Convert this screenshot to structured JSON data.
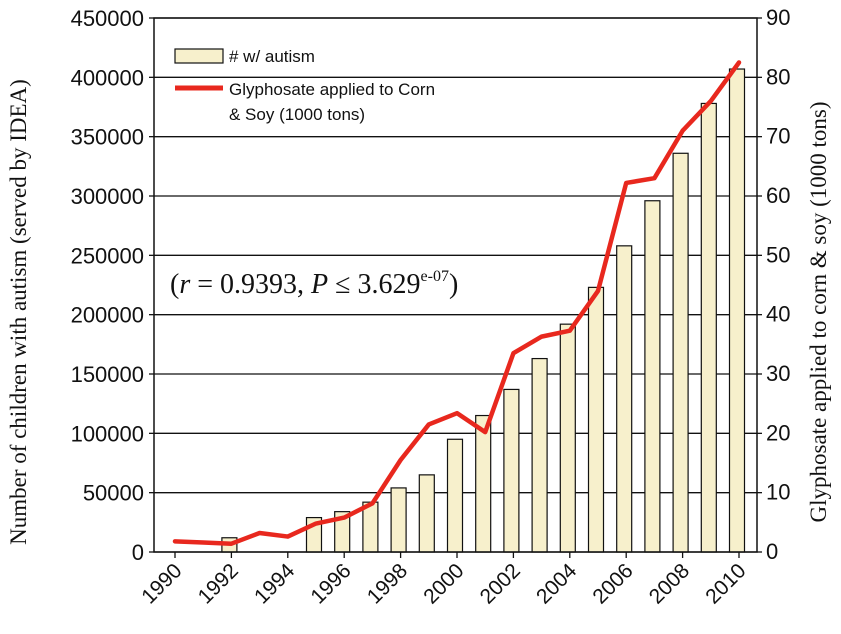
{
  "chart_data": {
    "type": "bar",
    "x": [
      1990,
      1991,
      1992,
      1993,
      1994,
      1995,
      1996,
      1997,
      1998,
      1999,
      2000,
      2001,
      2002,
      2003,
      2004,
      2005,
      2006,
      2007,
      2008,
      2009,
      2010
    ],
    "x_tick_labels": [
      "1990",
      "1992",
      "1994",
      "1996",
      "1998",
      "2000",
      "2002",
      "2004",
      "2006",
      "2008",
      "2010"
    ],
    "series": [
      {
        "name": "# w/ autism",
        "type": "bar",
        "axis": "left",
        "color": "#f7f0cc",
        "values": [
          null,
          null,
          12000,
          null,
          null,
          29000,
          34000,
          42000,
          54000,
          65000,
          95000,
          115000,
          137000,
          163000,
          192000,
          223000,
          258000,
          296000,
          336000,
          378000,
          407000
        ]
      },
      {
        "name": "Glyphosate applied to Corn & Soy (1000 tons)",
        "legend_lines": [
          "Glyphosate applied to Corn",
          "& Soy (1000 tons)"
        ],
        "type": "line",
        "axis": "right",
        "color": "#e8281e",
        "values": [
          1.8,
          1.6,
          1.4,
          3.2,
          2.6,
          4.8,
          5.8,
          8.2,
          15.5,
          21.5,
          23.4,
          20.2,
          33.5,
          36.3,
          37.3,
          44.0,
          62.2,
          63.0,
          71.0,
          76.0,
          82.5
        ]
      }
    ],
    "ylabel": "Number of children with autism (served by IDEA)",
    "ylabel_right": "Glyphosate applied to corn & soy (1000 tons)",
    "ylim": [
      0,
      450000
    ],
    "ylim_right": [
      0,
      90
    ],
    "yticks": [
      "0",
      "50000",
      "100000",
      "150000",
      "200000",
      "250000",
      "300000",
      "350000",
      "400000",
      "450000"
    ],
    "yticks_right": [
      "0",
      "10",
      "20",
      "30",
      "40",
      "50",
      "60",
      "70",
      "80",
      "90"
    ],
    "grid": "horizontal",
    "legend_position": "top-left",
    "annotation": {
      "open": "(",
      "r_sym": "r",
      "r_text": " = 0.9393, ",
      "p_sym": "P",
      "p_text": " ≤ 3.629",
      "p_sup": "e-07",
      "close": ")"
    }
  }
}
